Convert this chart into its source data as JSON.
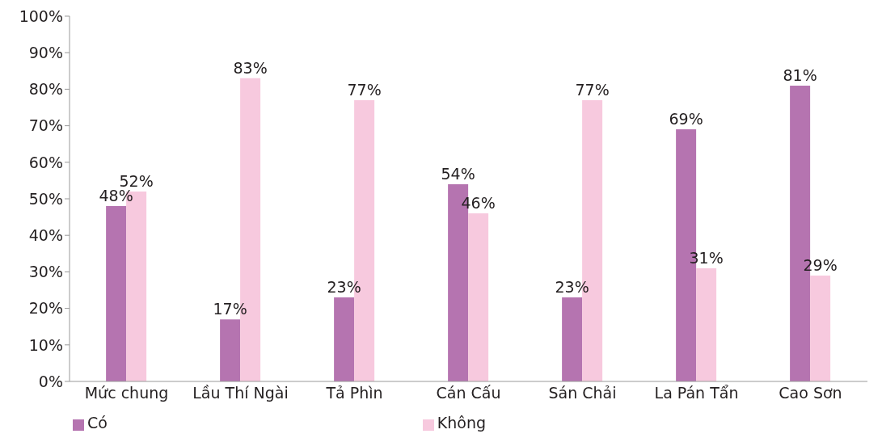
{
  "chart_data": {
    "type": "bar",
    "categories": [
      "Mức chung",
      "Lầu Thí Ngài",
      "Tả Phìn",
      "Cán Cấu",
      "Sán Chải",
      "La Pán Tẩn",
      "Cao Sơn"
    ],
    "series": [
      {
        "name": "Có",
        "color": "#b574b0",
        "values": [
          48,
          17,
          23,
          54,
          23,
          69,
          81
        ],
        "value_labels": [
          "48%",
          "17%",
          "23%",
          "54%",
          "23%",
          "69%",
          "81%"
        ]
      },
      {
        "name": "Không",
        "color": "#f7c9de",
        "values": [
          52,
          83,
          77,
          46,
          77,
          31,
          29
        ],
        "value_labels": [
          "52%",
          "83%",
          "77%",
          "46%",
          "77%",
          "31%",
          "29%"
        ]
      }
    ],
    "ylim": [
      0,
      100
    ],
    "yticks": [
      {
        "value": 0,
        "label": "0%"
      },
      {
        "value": 10,
        "label": "10%"
      },
      {
        "value": 20,
        "label": "20%"
      },
      {
        "value": 30,
        "label": "30%"
      },
      {
        "value": 40,
        "label": "40%"
      },
      {
        "value": 50,
        "label": "50%"
      },
      {
        "value": 60,
        "label": "60%"
      },
      {
        "value": 70,
        "label": "70%"
      },
      {
        "value": 80,
        "label": "80%"
      },
      {
        "value": 90,
        "label": "90%"
      },
      {
        "value": 100,
        "label": "100%"
      }
    ],
    "grid": false,
    "legend": "bottom"
  }
}
